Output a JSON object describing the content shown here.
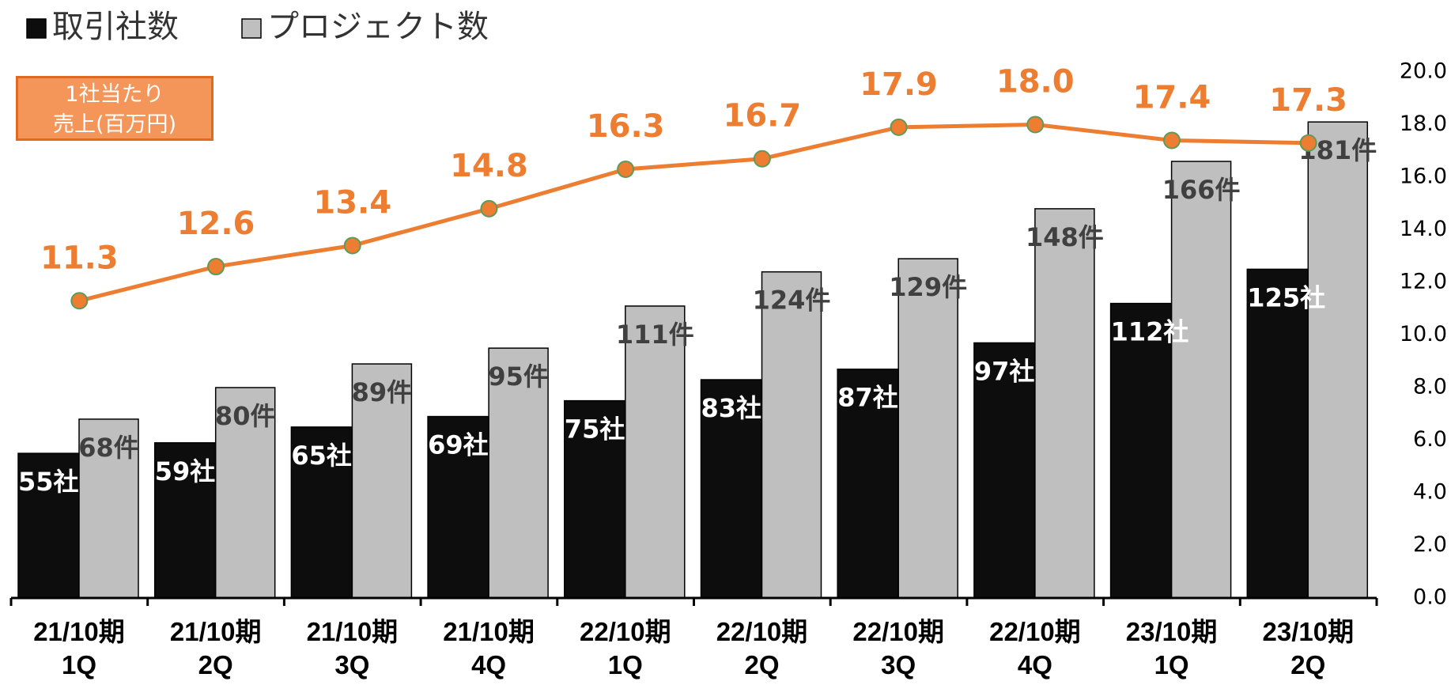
{
  "chart_data": {
    "type": "bar",
    "annotation": "1社当たり\n売上(百万円)",
    "categories": [
      "21/10期\n1Q",
      "21/10期\n2Q",
      "21/10期\n3Q",
      "21/10期\n4Q",
      "22/10期\n1Q",
      "22/10期\n2Q",
      "22/10期\n3Q",
      "22/10期\n4Q",
      "23/10期\n1Q",
      "23/10期\n2Q"
    ],
    "series": [
      {
        "name": "取引社数",
        "type": "bar",
        "color": "#0d0d0d",
        "values": [
          55,
          59,
          65,
          69,
          75,
          83,
          87,
          97,
          112,
          125
        ],
        "value_labels": [
          "55社",
          "59社",
          "65社",
          "69社",
          "75社",
          "83社",
          "87社",
          "97社",
          "112社",
          "125社"
        ]
      },
      {
        "name": "プロジェクト数",
        "type": "bar",
        "color": "#bfbfbf",
        "values": [
          68,
          80,
          89,
          95,
          111,
          124,
          129,
          148,
          166,
          181
        ],
        "value_labels": [
          "68件",
          "80件",
          "89件",
          "95件",
          "111件",
          "124件",
          "129件",
          "148件",
          "166件",
          "181件"
        ]
      },
      {
        "name": "1社当たり売上(百万円)",
        "type": "line",
        "axis": "y2",
        "color": "#ED7D31",
        "values": [
          11.3,
          12.6,
          13.4,
          14.8,
          16.3,
          16.7,
          17.9,
          18.0,
          17.4,
          17.3
        ],
        "value_labels": [
          "11.3",
          "12.6",
          "13.4",
          "14.8",
          "16.3",
          "16.7",
          "17.9",
          "18.0",
          "17.4",
          "17.3"
        ]
      }
    ],
    "ylim": [
      0,
      200
    ],
    "y2lim": [
      0,
      20
    ],
    "y2ticks": [
      {
        "value": 0,
        "label": "0.0"
      },
      {
        "value": 2,
        "label": "2.0"
      },
      {
        "value": 4,
        "label": "4.0"
      },
      {
        "value": 6,
        "label": "6.0"
      },
      {
        "value": 8,
        "label": "8.0"
      },
      {
        "value": 10,
        "label": "10.0"
      },
      {
        "value": 12,
        "label": "12.0"
      },
      {
        "value": 14,
        "label": "14.0"
      },
      {
        "value": 16,
        "label": "16.0"
      },
      {
        "value": 18,
        "label": "18.0"
      },
      {
        "value": 20,
        "label": "20.0"
      }
    ],
    "legend": "top-left"
  }
}
